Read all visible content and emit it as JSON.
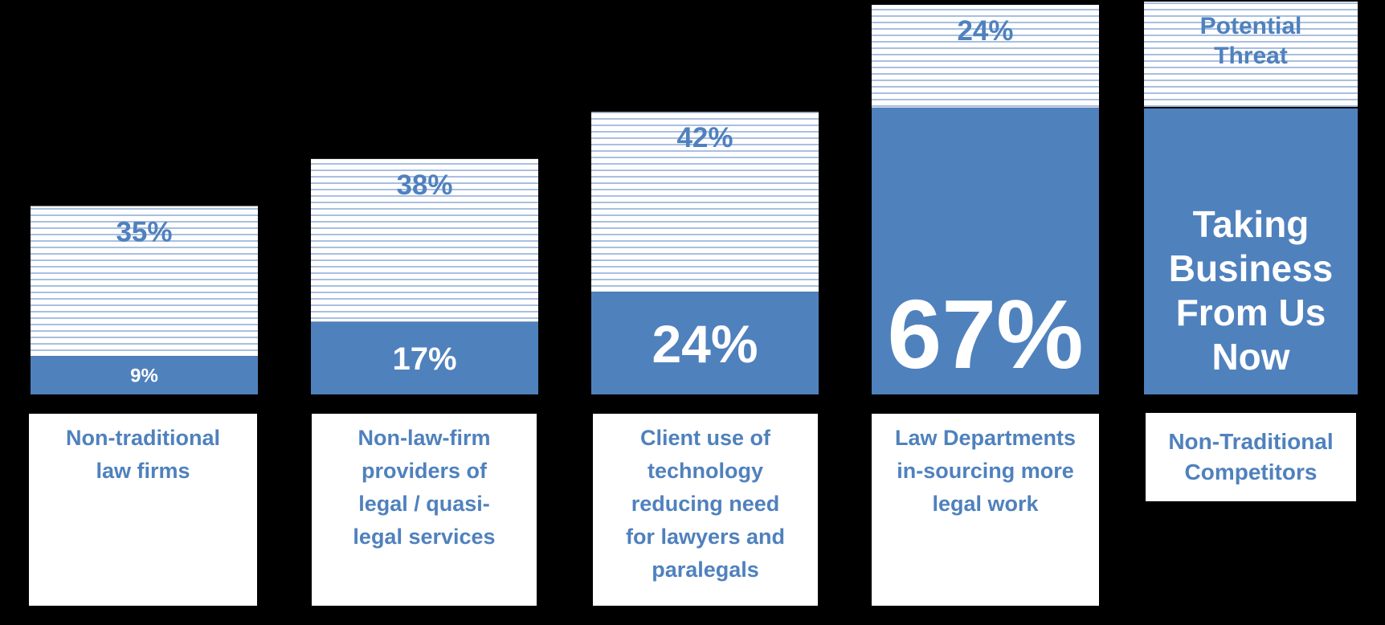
{
  "chart_data": {
    "type": "bar",
    "stacked": true,
    "categories": [
      "Non-traditional\nlaw firms",
      "Non-law-firm\nproviders of\nlegal / quasi-\nlegal services",
      "Client use of\ntechnology\nreducing need\nfor lawyers and\nparalegals",
      "Law Departments\nin-sourcing more\nlegal work"
    ],
    "series": [
      {
        "name": "Taking Business From Us Now",
        "values": [
          9,
          17,
          24,
          67
        ],
        "labels": [
          "9%",
          "17%",
          "24%",
          "67%"
        ],
        "style": "solid"
      },
      {
        "name": "Potential Threat",
        "values": [
          35,
          38,
          42,
          24
        ],
        "labels": [
          "35%",
          "38%",
          "42%",
          "24%"
        ],
        "style": "striped"
      }
    ],
    "ylim": [
      0,
      91
    ],
    "legend_title": "Non-Traditional\nCompetitors",
    "legend_position": "right",
    "grid": false
  },
  "colors": {
    "solid": "#4f81bd",
    "stripe": "#a9bfe0",
    "label_on_solid": "#ffffff",
    "label_on_stripe": "#4f81bd",
    "background": "#000000",
    "box": "#ffffff"
  }
}
